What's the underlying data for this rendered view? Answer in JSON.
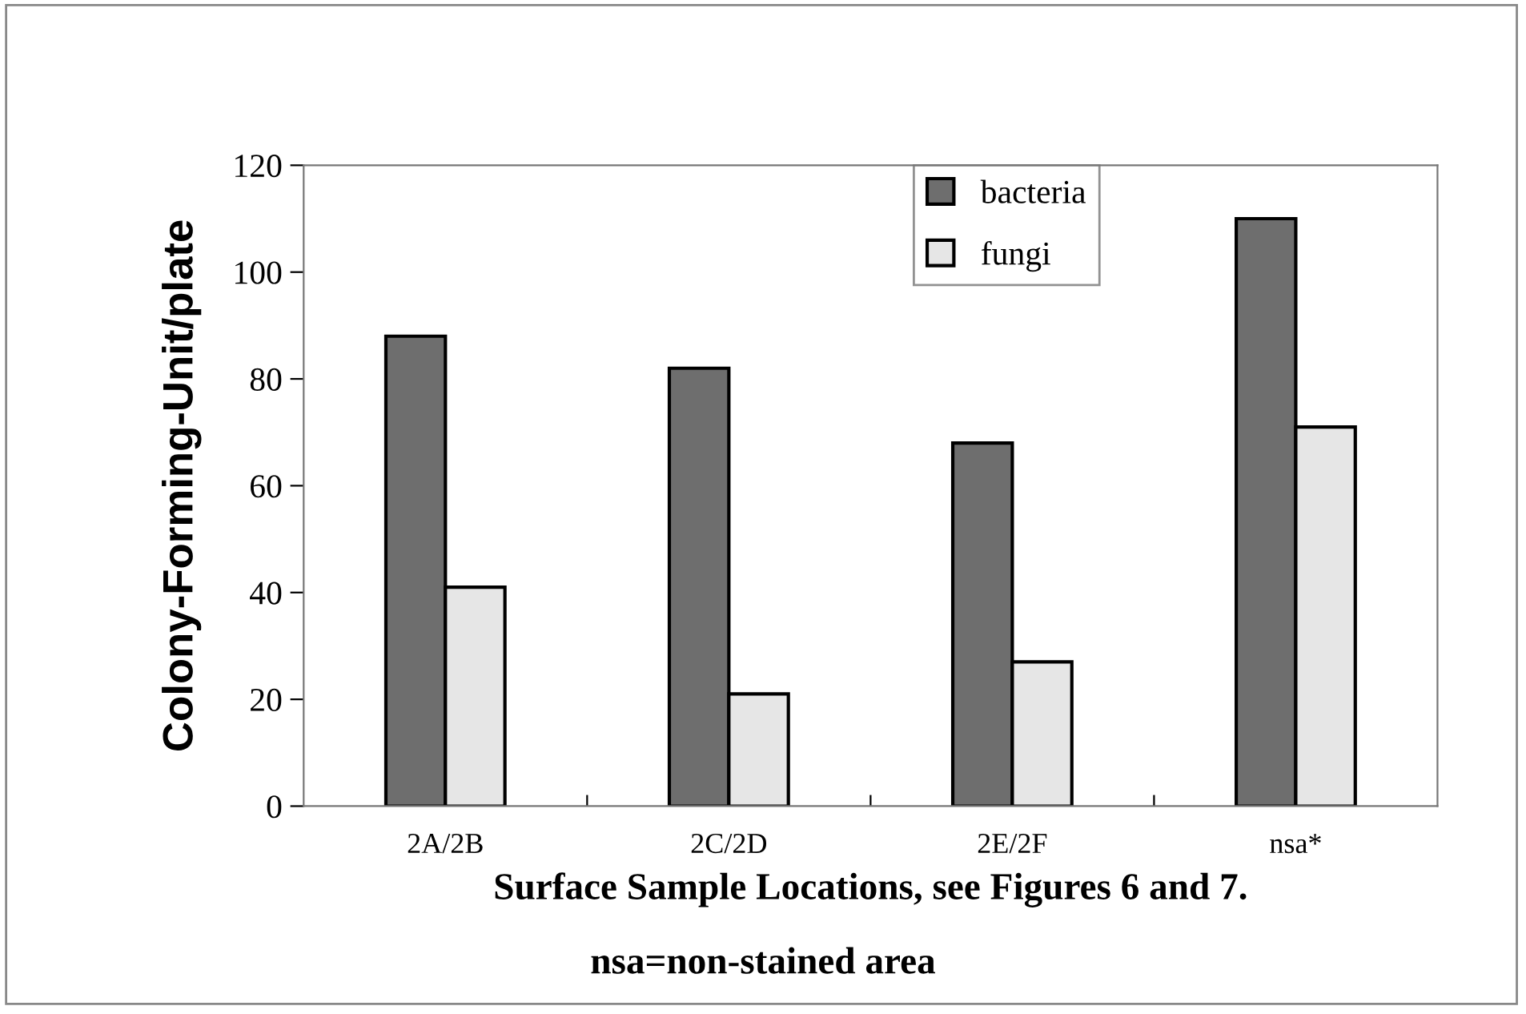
{
  "chart_data": {
    "type": "bar",
    "categories": [
      "2A/2B",
      "2C/2D",
      "2E/2F",
      "nsa*"
    ],
    "series": [
      {
        "name": "bacteria",
        "color": "#6e6e6e",
        "values": [
          88,
          82,
          68,
          110
        ]
      },
      {
        "name": "fungi",
        "color": "#e6e6e6",
        "values": [
          41,
          21,
          27,
          71
        ]
      }
    ],
    "xlabel": "Surface Sample Locations, see Figures 6 and 7.",
    "ylabel": "Colony-Forming-Unit/plate",
    "annotations": [
      "nsa=non-stained area"
    ],
    "ylim": [
      0,
      120
    ],
    "yticks": [
      0,
      20,
      40,
      60,
      80,
      100,
      120
    ],
    "grid": false,
    "legend": "top"
  }
}
